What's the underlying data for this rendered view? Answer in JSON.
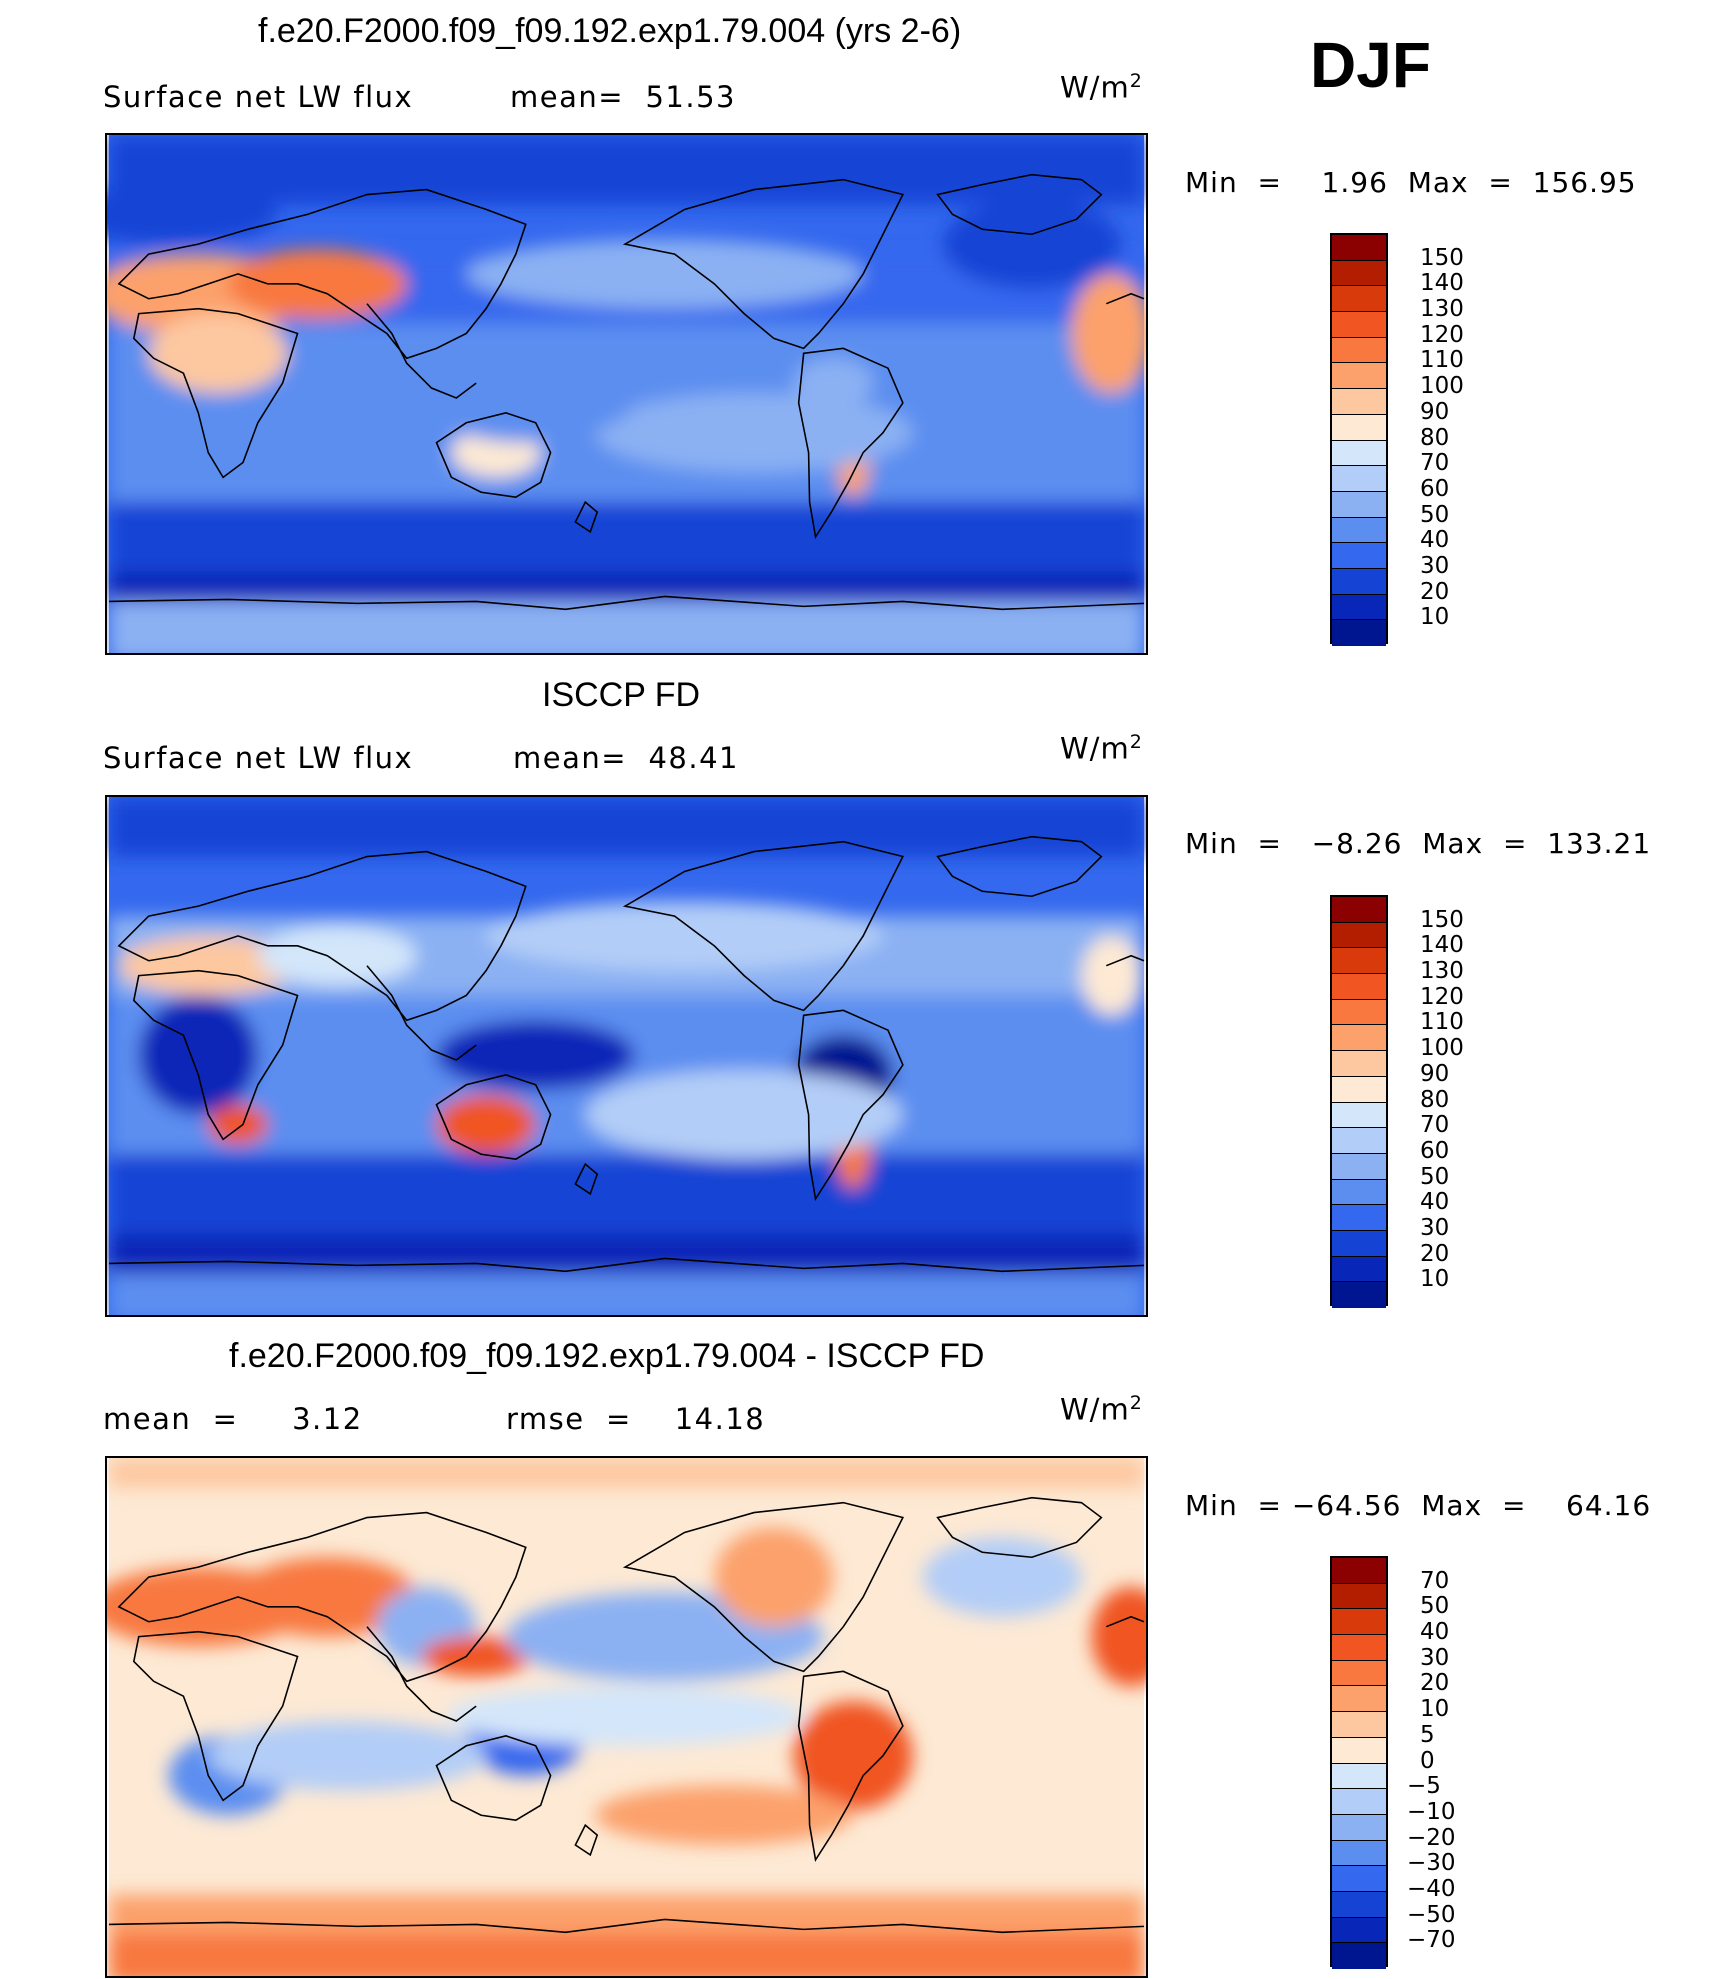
{
  "season": "DJF",
  "panels": [
    {
      "title": "f.e20.F2000.f09_f09.192.exp1.79.004 (yrs 2-6)",
      "left_text": "Surface net LW flux",
      "mid_text": "mean=  51.53",
      "units_base": "W/m",
      "units_exp": "2",
      "minmax": "Min  =    1.96  Max  =  156.95",
      "levels": [
        "150",
        "140",
        "130",
        "120",
        "110",
        "100",
        "90",
        "80",
        "70",
        "60",
        "50",
        "40",
        "30",
        "20",
        "10"
      ],
      "colors": [
        "#8b0000",
        "#b41e00",
        "#d93a0c",
        "#f05522",
        "#f8783f",
        "#fca16c",
        "#fdc8a0",
        "#fde9d4",
        "#d3e6fa",
        "#b2cdf7",
        "#8bb1f3",
        "#5c8ef0",
        "#3468ee",
        "#1544d5",
        "#0827b8",
        "#001590"
      ]
    },
    {
      "title": "ISCCP FD",
      "left_text": "Surface net LW flux",
      "mid_text": "mean=  48.41",
      "units_base": "W/m",
      "units_exp": "2",
      "minmax": "Min  =   −8.26  Max  =  133.21",
      "levels": [
        "150",
        "140",
        "130",
        "120",
        "110",
        "100",
        "90",
        "80",
        "70",
        "60",
        "50",
        "40",
        "30",
        "20",
        "10"
      ],
      "colors": [
        "#8b0000",
        "#b41e00",
        "#d93a0c",
        "#f05522",
        "#f8783f",
        "#fca16c",
        "#fdc8a0",
        "#fde9d4",
        "#d3e6fa",
        "#b2cdf7",
        "#8bb1f3",
        "#5c8ef0",
        "#3468ee",
        "#1544d5",
        "#0827b8",
        "#001590"
      ]
    },
    {
      "title": "f.e20.F2000.f09_f09.192.exp1.79.004 - ISCCP FD",
      "left_text": "mean  =     3.12",
      "mid_text": "rmse  =    14.18",
      "units_base": "W/m",
      "units_exp": "2",
      "minmax": "Min  = −64.56  Max  =    64.16",
      "levels": [
        "70",
        "50",
        "40",
        "30",
        "20",
        "10",
        "5",
        "0",
        "−5",
        "−10",
        "−20",
        "−30",
        "−40",
        "−50",
        "−70"
      ],
      "colors": [
        "#8b0000",
        "#b41e00",
        "#d93a0c",
        "#f05522",
        "#f8783f",
        "#fca16c",
        "#fdc8a0",
        "#fde9d4",
        "#d3e6fa",
        "#b2cdf7",
        "#8bb1f3",
        "#5c8ef0",
        "#3468ee",
        "#1544d5",
        "#0827b8",
        "#001590"
      ]
    }
  ]
}
